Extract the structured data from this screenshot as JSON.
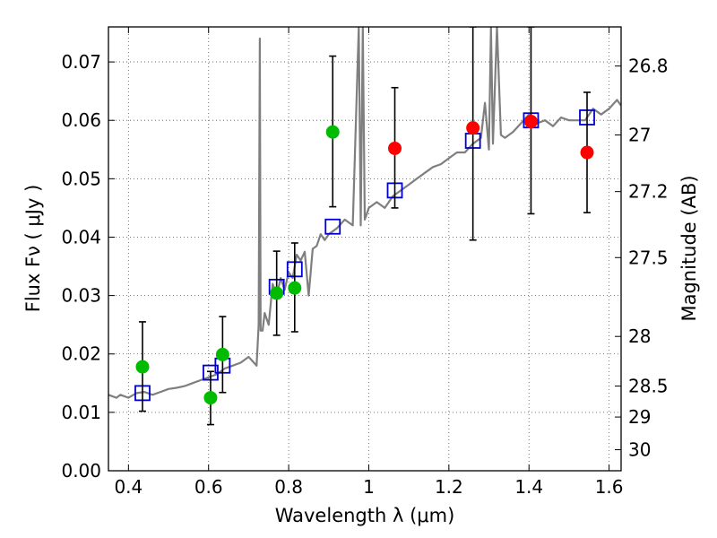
{
  "chart_data": {
    "type": "scatter",
    "xlabel": "Wavelength  λ (μm)",
    "ylabel": "Flux  Fν  ( μJy )",
    "ylabel_right": "Magnitude (AB)",
    "xlim": [
      0.35,
      1.63
    ],
    "ylim": [
      0.0,
      0.076
    ],
    "grid": true,
    "x_ticks": [
      0.4,
      0.6,
      0.8,
      1.0,
      1.2,
      1.4,
      1.6
    ],
    "x_tick_labels": [
      "0.4",
      "0.6",
      "0.8",
      "1",
      "1.2",
      "1.4",
      "1.6"
    ],
    "y_ticks": [
      0.0,
      0.01,
      0.02,
      0.03,
      0.04,
      0.05,
      0.06,
      0.07
    ],
    "y_tick_labels": [
      "0.00",
      "0.01",
      "0.02",
      "0.03",
      "0.04",
      "0.05",
      "0.06",
      "0.07"
    ],
    "right_ticks": [
      {
        "flux": 0.0693,
        "label": "26.8"
      },
      {
        "flux": 0.0575,
        "label": "27"
      },
      {
        "flux": 0.0478,
        "label": "27.2"
      },
      {
        "flux": 0.0365,
        "label": "27.5"
      },
      {
        "flux": 0.023,
        "label": "28"
      },
      {
        "flux": 0.0145,
        "label": "28.5"
      },
      {
        "flux": 0.0092,
        "label": "29"
      },
      {
        "flux": 0.0036,
        "label": "30"
      }
    ],
    "series": [
      {
        "kind": "line",
        "color": "#7f7f7f",
        "x": [
          0.35,
          0.37,
          0.38,
          0.4,
          0.42,
          0.44,
          0.46,
          0.48,
          0.5,
          0.52,
          0.54,
          0.56,
          0.58,
          0.6,
          0.62,
          0.64,
          0.66,
          0.68,
          0.7,
          0.72,
          0.725,
          0.728,
          0.73,
          0.735,
          0.74,
          0.75,
          0.76,
          0.77,
          0.78,
          0.79,
          0.8,
          0.81,
          0.82,
          0.83,
          0.84,
          0.85,
          0.86,
          0.87,
          0.88,
          0.89,
          0.9,
          0.92,
          0.94,
          0.96,
          0.975,
          0.98,
          0.985,
          0.99,
          1.0,
          1.02,
          1.04,
          1.06,
          1.08,
          1.1,
          1.12,
          1.14,
          1.16,
          1.18,
          1.2,
          1.22,
          1.24,
          1.26,
          1.28,
          1.29,
          1.3,
          1.305,
          1.31,
          1.32,
          1.33,
          1.34,
          1.36,
          1.38,
          1.4,
          1.42,
          1.44,
          1.46,
          1.48,
          1.5,
          1.52,
          1.54,
          1.56,
          1.58,
          1.6,
          1.62,
          1.63
        ],
        "y": [
          0.013,
          0.0125,
          0.013,
          0.0125,
          0.0133,
          0.0135,
          0.013,
          0.0135,
          0.014,
          0.0142,
          0.0145,
          0.015,
          0.0155,
          0.016,
          0.0165,
          0.0175,
          0.018,
          0.0185,
          0.0195,
          0.018,
          0.025,
          0.074,
          0.024,
          0.024,
          0.027,
          0.025,
          0.032,
          0.03,
          0.033,
          0.031,
          0.034,
          0.033,
          0.037,
          0.036,
          0.0375,
          0.03,
          0.038,
          0.0385,
          0.0405,
          0.0395,
          0.0405,
          0.0415,
          0.043,
          0.042,
          0.076,
          0.042,
          0.076,
          0.043,
          0.045,
          0.046,
          0.045,
          0.047,
          0.048,
          0.049,
          0.05,
          0.051,
          0.052,
          0.0525,
          0.0535,
          0.0545,
          0.0545,
          0.056,
          0.057,
          0.063,
          0.055,
          0.076,
          0.056,
          0.076,
          0.0575,
          0.057,
          0.058,
          0.0595,
          0.061,
          0.0595,
          0.06,
          0.059,
          0.0605,
          0.06,
          0.06,
          0.06,
          0.062,
          0.061,
          0.062,
          0.0635,
          0.0625
        ]
      },
      {
        "kind": "model-photometry",
        "color": "#0000cc",
        "marker": "open-square",
        "x": [
          0.435,
          0.605,
          0.635,
          0.77,
          0.815,
          0.91,
          1.065,
          1.26,
          1.405,
          1.545
        ],
        "y": [
          0.0133,
          0.0168,
          0.018,
          0.0315,
          0.0345,
          0.0418,
          0.048,
          0.0565,
          0.06,
          0.0605
        ]
      },
      {
        "kind": "observed-flux",
        "color": "#00bb00",
        "marker": "filled-circle",
        "x": [
          0.435,
          0.605,
          0.635,
          0.77,
          0.815,
          0.91
        ],
        "y": [
          0.0178,
          0.0125,
          0.0199,
          0.0304,
          0.0313,
          0.058
        ],
        "yerr_low": [
          0.0102,
          0.0079,
          0.0134,
          0.0232,
          0.0238,
          0.0452
        ],
        "yerr_high": [
          0.0255,
          0.017,
          0.0264,
          0.0376,
          0.039,
          0.071
        ]
      },
      {
        "kind": "observed-flux",
        "color": "#ff0000",
        "marker": "filled-circle",
        "x": [
          1.065,
          1.26,
          1.405,
          1.545
        ],
        "y": [
          0.0552,
          0.0587,
          0.0598,
          0.0545
        ],
        "yerr_low": [
          0.045,
          0.0395,
          0.044,
          0.0442
        ],
        "yerr_high": [
          0.0656,
          0.076,
          0.076,
          0.0648
        ]
      }
    ]
  }
}
